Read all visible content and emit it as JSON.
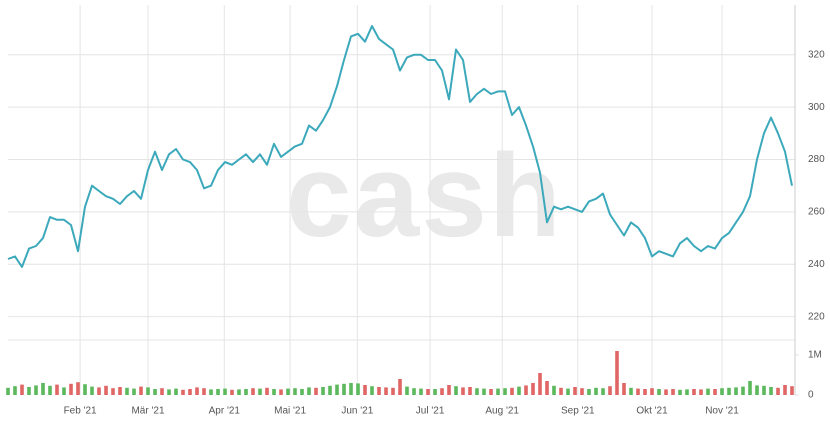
{
  "chart_data": {
    "type": "stock",
    "watermark": "cash",
    "xlim": [
      0,
      112
    ],
    "xticks": [
      {
        "value": 10.3,
        "label": "Feb '21"
      },
      {
        "value": 20,
        "label": "Mär '21"
      },
      {
        "value": 30.9,
        "label": "Apr '21"
      },
      {
        "value": 40.3,
        "label": "Mai '21"
      },
      {
        "value": 49.9,
        "label": "Jun '21"
      },
      {
        "value": 60.3,
        "label": "Jul '21"
      },
      {
        "value": 70.6,
        "label": "Aug '21"
      },
      {
        "value": 81.4,
        "label": "Sep '21"
      },
      {
        "value": 92,
        "label": "Okt '21"
      },
      {
        "value": 102,
        "label": "Nov '21"
      }
    ],
    "ylim": [
      213,
      339
    ],
    "yticks": [
      220,
      240,
      260,
      280,
      300,
      320
    ],
    "y2lim": [
      0,
      1300000
    ],
    "y2ticks": [
      0,
      {
        "value": 1000000,
        "label": "1M"
      }
    ],
    "grid": true,
    "series": [
      {
        "color": "#3ba9bb",
        "values": [
          242,
          243,
          239,
          246,
          247,
          250,
          258,
          257,
          257,
          255,
          245,
          262,
          270,
          268,
          266,
          265,
          263,
          266,
          268,
          265,
          276,
          283,
          276,
          282,
          284,
          280,
          279,
          276,
          269,
          270,
          276,
          279,
          278,
          280,
          282,
          279,
          282,
          278,
          286,
          281,
          283,
          285,
          286,
          293,
          291,
          295,
          300,
          308,
          318,
          327,
          328,
          325,
          331,
          326,
          324,
          322,
          314,
          319,
          320,
          320,
          318,
          318,
          314,
          303,
          322,
          318,
          302,
          305,
          307,
          305,
          306,
          306,
          297,
          300,
          293,
          285,
          275,
          256,
          262,
          261,
          262,
          261,
          260,
          264,
          265,
          267,
          259,
          255,
          251,
          256,
          254,
          250,
          243,
          245,
          244,
          243,
          248,
          250,
          247,
          245,
          247,
          246,
          250,
          252,
          256,
          260,
          266,
          280,
          290,
          296,
          290,
          283,
          270
        ]
      },
      {
        "axis": "y2",
        "up_color": "#5cb85c",
        "down_color": "#e06666",
        "values": [
          180000,
          220000,
          260000,
          200000,
          240000,
          300000,
          230000,
          260000,
          190000,
          280000,
          320000,
          270000,
          210000,
          190000,
          230000,
          170000,
          200000,
          180000,
          160000,
          210000,
          190000,
          150000,
          170000,
          140000,
          160000,
          130000,
          150000,
          190000,
          170000,
          140000,
          150000,
          160000,
          130000,
          140000,
          150000,
          170000,
          160000,
          180000,
          150000,
          140000,
          160000,
          170000,
          150000,
          190000,
          180000,
          200000,
          230000,
          260000,
          280000,
          300000,
          290000,
          250000,
          220000,
          200000,
          190000,
          180000,
          400000,
          210000,
          170000,
          160000,
          150000,
          150000,
          170000,
          250000,
          220000,
          190000,
          200000,
          170000,
          160000,
          150000,
          160000,
          170000,
          180000,
          210000,
          240000,
          300000,
          550000,
          350000,
          230000,
          180000,
          160000,
          200000,
          170000,
          150000,
          180000,
          170000,
          220000,
          1100000,
          300000,
          180000,
          160000,
          150000,
          170000,
          150000,
          140000,
          150000,
          130000,
          140000,
          150000,
          140000,
          160000,
          150000,
          170000,
          180000,
          190000,
          210000,
          350000,
          240000,
          230000,
          200000,
          180000,
          250000,
          220000
        ]
      }
    ]
  }
}
